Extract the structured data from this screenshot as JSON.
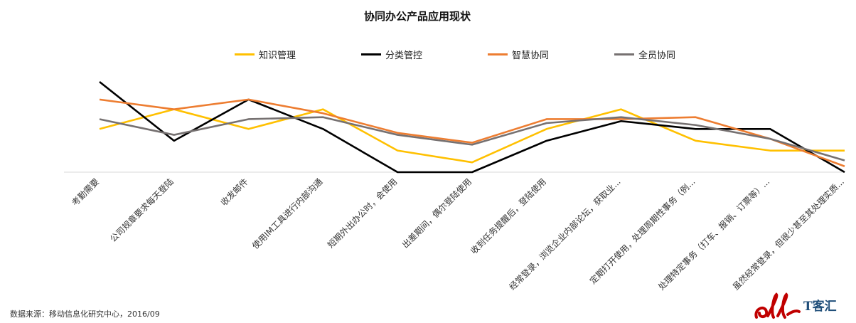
{
  "chart_data": {
    "type": "line",
    "title": "协同办公产品应用现状",
    "xlabel": "",
    "ylabel": "",
    "grid": false,
    "legend_position": "top",
    "ylim": [
      0,
      1
    ],
    "categories": [
      "考勤需要",
      "公司规章要求每天登陆",
      "收发邮件",
      "使用IM工具进行内部沟通",
      "短期外出办公时，会使用",
      "出差期间，偶尔登陆使用",
      "收到任务提醒后，登陆使用",
      "经常登录，浏览企业内部论坛，获取业...",
      "定期打开使用，处理周期性事务（例...",
      "处理特定事务（打车、报销、订票等）...",
      "虽然经常登录，但很少甚至其处理实质..."
    ],
    "series": [
      {
        "name": "知识管理",
        "color": "#FFC000",
        "values": [
          0.44,
          0.64,
          0.44,
          0.64,
          0.22,
          0.1,
          0.44,
          0.64,
          0.32,
          0.22,
          0.22
        ]
      },
      {
        "name": "分类管控",
        "color": "#000000",
        "values": [
          0.92,
          0.32,
          0.74,
          0.44,
          0.0,
          0.0,
          0.32,
          0.52,
          0.44,
          0.44,
          0.0
        ]
      },
      {
        "name": "智慧协同",
        "color": "#ED7D31",
        "values": [
          0.74,
          0.64,
          0.74,
          0.6,
          0.4,
          0.3,
          0.54,
          0.54,
          0.56,
          0.34,
          0.06
        ]
      },
      {
        "name": "全员协同",
        "color": "#767171",
        "values": [
          0.54,
          0.38,
          0.54,
          0.56,
          0.38,
          0.28,
          0.5,
          0.56,
          0.48,
          0.34,
          0.12
        ]
      }
    ]
  },
  "footer": {
    "source": "数据来源：移动信息化研究中心，2016/09",
    "logo_text": "T客汇"
  }
}
